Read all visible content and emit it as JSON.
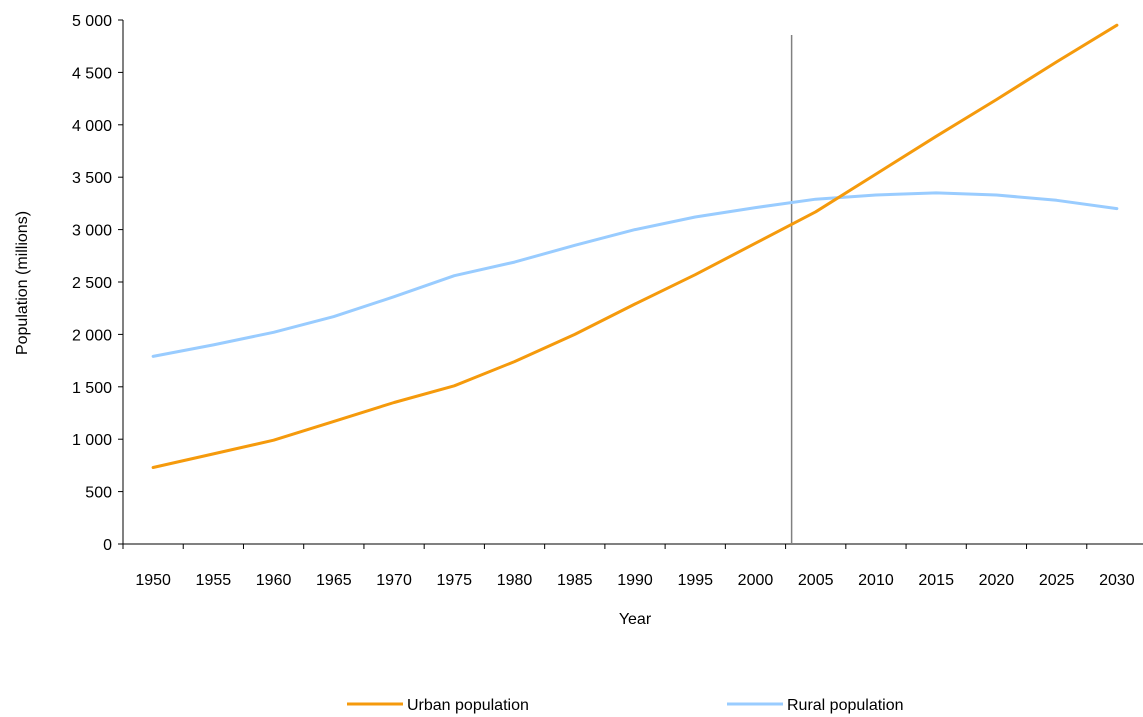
{
  "chart_data": {
    "type": "line",
    "title": "",
    "xlabel": "Year",
    "ylabel": "Population (millions)",
    "xlim": [
      1947.5,
      2032.5
    ],
    "ylim": [
      0,
      5000
    ],
    "x_ticks": [
      1950,
      1955,
      1960,
      1965,
      1970,
      1975,
      1980,
      1985,
      1990,
      1995,
      2000,
      2005,
      2010,
      2015,
      2020,
      2025,
      2030
    ],
    "x_tick_labels": [
      "1950",
      "1955",
      "1960",
      "1965",
      "1970",
      "1975",
      "1980",
      "1985",
      "1990",
      "1995",
      "2000",
      "2005",
      "2010",
      "2015",
      "2020",
      "2025",
      "2030"
    ],
    "y_ticks": [
      0,
      500,
      1000,
      1500,
      2000,
      2500,
      3000,
      3500,
      4000,
      4500,
      5000
    ],
    "y_tick_labels": [
      "0",
      "500",
      "1 000",
      "1 500",
      "2 000",
      "2 500",
      "3 000",
      "3 500",
      "4 000",
      "4 500",
      "5 000"
    ],
    "grid": false,
    "legend_position": "bottom",
    "reference_line_x": 2003,
    "series": [
      {
        "name": "Urban population",
        "color": "#f59a0c",
        "x": [
          1950,
          1955,
          1960,
          1965,
          1970,
          1975,
          1980,
          1985,
          1990,
          1995,
          2000,
          2005,
          2010,
          2015,
          2020,
          2025,
          2030
        ],
        "y": [
          730,
          860,
          990,
          1170,
          1350,
          1510,
          1740,
          2000,
          2290,
          2570,
          2870,
          3170,
          3530,
          3890,
          4240,
          4600,
          4950
        ]
      },
      {
        "name": "Rural population",
        "color": "#99ccff",
        "x": [
          1950,
          1955,
          1960,
          1965,
          1970,
          1975,
          1980,
          1985,
          1990,
          1995,
          2000,
          2005,
          2010,
          2015,
          2020,
          2025,
          2030
        ],
        "y": [
          1790,
          1900,
          2020,
          2170,
          2360,
          2560,
          2690,
          2850,
          3000,
          3120,
          3210,
          3290,
          3330,
          3350,
          3330,
          3280,
          3200
        ]
      }
    ]
  }
}
